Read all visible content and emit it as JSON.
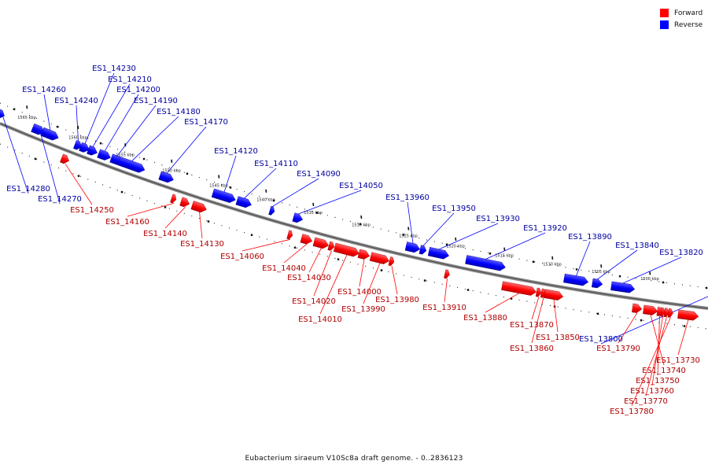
{
  "caption": "Eubacterium siraeum V10Sc8a draft genome. - 0..2836123",
  "legend": [
    {
      "label": "Forward",
      "color": "#ff0000"
    },
    {
      "label": "Reverse",
      "color": "#0000ff"
    }
  ],
  "colors": {
    "forward": "#ff0000",
    "reverse": "#0000ff",
    "backbone": "#888888",
    "ticks": "#111111"
  },
  "scale_labels": [
    "1565 kbp",
    "1560 kbp",
    "1555 kbp",
    "1550 kbp",
    "1545 kbp",
    "1540 kbp",
    "1535 kbp",
    "1530 kbp",
    "1525 kbp",
    "1520 kbp",
    "1515 kbp",
    "1510 kbp",
    "1505 kbp",
    "1500 kbp"
  ],
  "reverse_genes": [
    "ES1_14280",
    "ES1_14270",
    "ES1_14260",
    "ES1_14240",
    "ES1_14230",
    "ES1_14210",
    "ES1_14200",
    "ES1_14190",
    "ES1_14180",
    "ES1_14170",
    "ES1_14120",
    "ES1_14110",
    "ES1_14090",
    "ES1_14050",
    "ES1_13960",
    "ES1_13950",
    "ES1_13930",
    "ES1_13920",
    "ES1_13890",
    "ES1_13840",
    "ES1_13820",
    "ES1_13800"
  ],
  "forward_genes": [
    "ES1_14250",
    "ES1_14160",
    "ES1_14140",
    "ES1_14130",
    "ES1_14060",
    "ES1_14040",
    "ES1_14030",
    "ES1_14020",
    "ES1_14010",
    "ES1_14000",
    "ES1_13990",
    "ES1_13980",
    "ES1_13910",
    "ES1_13880",
    "ES1_13870",
    "ES1_13860",
    "ES1_13850",
    "ES1_13790",
    "ES1_13780",
    "ES1_13770",
    "ES1_13760",
    "ES1_13750",
    "ES1_13740",
    "ES1_13730"
  ]
}
